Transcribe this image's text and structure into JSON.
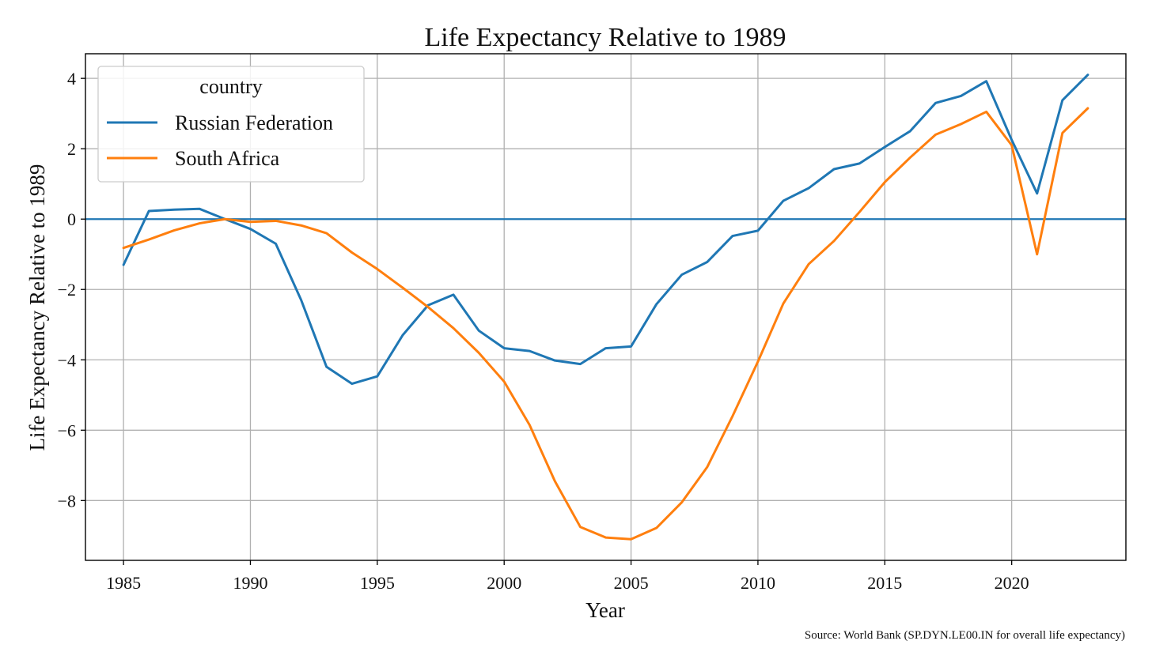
{
  "chart_data": {
    "type": "line",
    "title": "Life Expectancy Relative to 1989",
    "xlabel": "Year",
    "ylabel": "Life Expectancy Relative to 1989",
    "x": [
      1985,
      1986,
      1987,
      1988,
      1989,
      1990,
      1991,
      1992,
      1993,
      1994,
      1995,
      1996,
      1997,
      1998,
      1999,
      2000,
      2001,
      2002,
      2003,
      2004,
      2005,
      2006,
      2007,
      2008,
      2009,
      2010,
      2011,
      2012,
      2013,
      2014,
      2015,
      2016,
      2017,
      2018,
      2019,
      2020,
      2021,
      2022,
      2023
    ],
    "xticks": [
      1985,
      1990,
      1995,
      2000,
      2005,
      2010,
      2015,
      2020
    ],
    "yticks": [
      -8,
      -6,
      -4,
      -2,
      0,
      2,
      4
    ],
    "xlim": [
      1983.5,
      2024.5
    ],
    "ylim": [
      -9.7,
      4.7
    ],
    "grid": true,
    "legend": {
      "title": "country",
      "position": "top-left"
    },
    "reference_line": {
      "y": 0,
      "color": "#1f77b4"
    },
    "series": [
      {
        "name": "Russian Federation",
        "color": "#1f77b4",
        "values": [
          -1.3,
          0.23,
          0.27,
          0.29,
          0.0,
          -0.28,
          -0.7,
          -2.3,
          -4.2,
          -4.68,
          -4.47,
          -3.3,
          -2.45,
          -2.15,
          -3.17,
          -3.67,
          -3.75,
          -4.02,
          -4.12,
          -3.67,
          -3.62,
          -2.42,
          -1.58,
          -1.22,
          -0.48,
          -0.33,
          0.52,
          0.88,
          1.42,
          1.58,
          2.05,
          2.5,
          3.3,
          3.5,
          3.92,
          2.25,
          0.73,
          3.38,
          4.1
        ]
      },
      {
        "name": "South Africa",
        "color": "#ff7f0e",
        "values": [
          -0.82,
          -0.58,
          -0.32,
          -0.12,
          0.0,
          -0.08,
          -0.05,
          -0.18,
          -0.4,
          -0.95,
          -1.42,
          -1.95,
          -2.5,
          -3.1,
          -3.8,
          -4.62,
          -5.85,
          -7.45,
          -8.75,
          -9.05,
          -9.1,
          -8.78,
          -8.05,
          -7.05,
          -5.6,
          -4.05,
          -2.4,
          -1.28,
          -0.62,
          0.2,
          1.05,
          1.75,
          2.4,
          2.7,
          3.05,
          2.1,
          -1.0,
          2.45,
          3.15
        ]
      }
    ]
  },
  "source_note": "Source: World Bank (SP.DYN.LE00.IN for overall life expectancy)"
}
